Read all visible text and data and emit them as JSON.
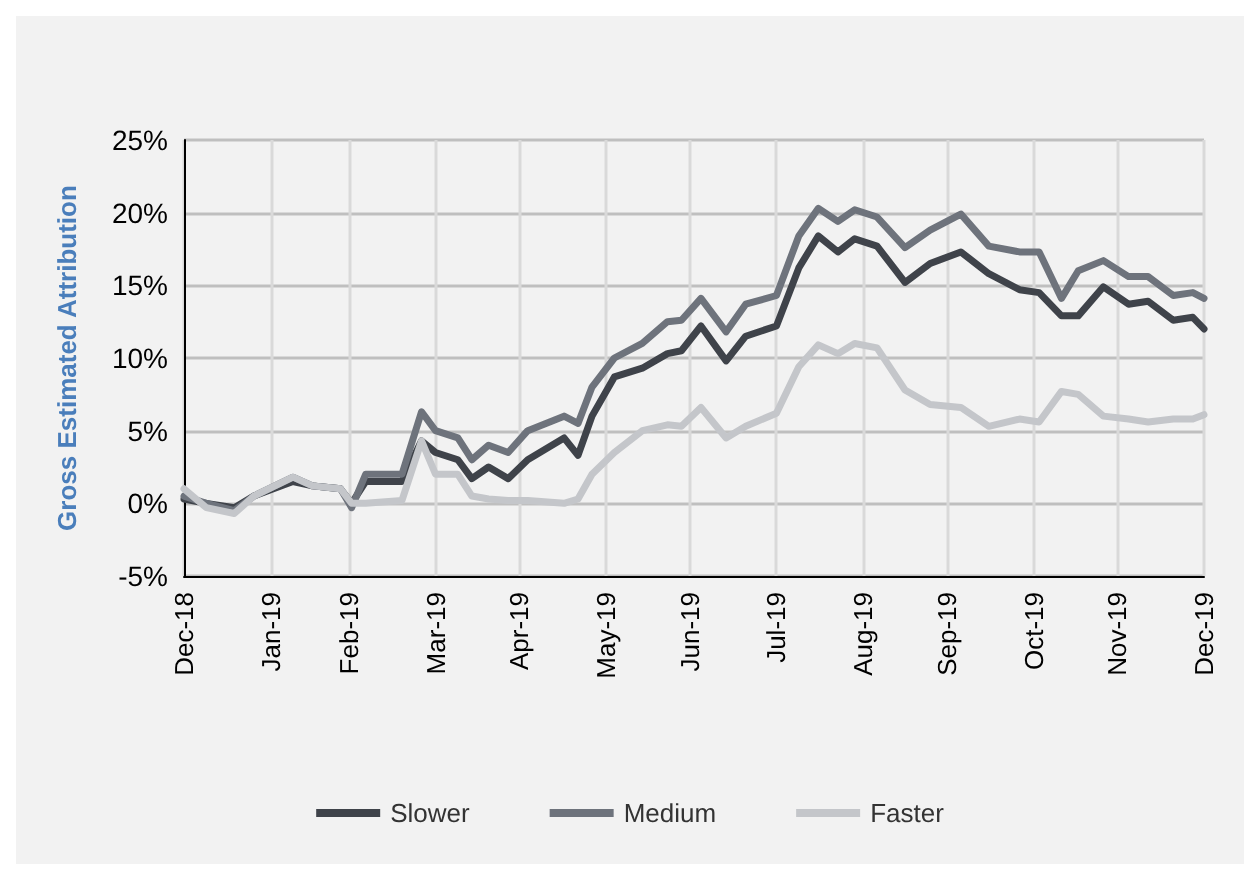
{
  "chart_data": {
    "type": "line",
    "ylabel": "Gross Estimated Attribution",
    "x": [
      "2018-12-31",
      "2019-01-08",
      "2019-01-18",
      "2019-01-25",
      "2019-02-08",
      "2019-02-15",
      "2019-02-25",
      "2019-03-01",
      "2019-03-06",
      "2019-03-19",
      "2019-03-26",
      "2019-03-31",
      "2019-04-08",
      "2019-04-13",
      "2019-04-19",
      "2019-04-26",
      "2019-05-03",
      "2019-05-16",
      "2019-05-21",
      "2019-05-26",
      "2019-06-03",
      "2019-06-13",
      "2019-06-22",
      "2019-06-27",
      "2019-07-04",
      "2019-07-13",
      "2019-07-20",
      "2019-07-31",
      "2019-08-08",
      "2019-08-15",
      "2019-08-22",
      "2019-08-28",
      "2019-09-05",
      "2019-09-15",
      "2019-09-24",
      "2019-10-05",
      "2019-10-15",
      "2019-10-26",
      "2019-11-02",
      "2019-11-10",
      "2019-11-16",
      "2019-11-25",
      "2019-12-04",
      "2019-12-11",
      "2019-12-20",
      "2019-12-27",
      "2019-12-31"
    ],
    "series": [
      {
        "name": "Slower",
        "color": "#3f434a",
        "values": [
          0.3,
          0,
          -0.3,
          0.5,
          1.5,
          1.2,
          1.0,
          0,
          1.5,
          1.5,
          4.3,
          3.5,
          3.0,
          1.7,
          2.5,
          1.7,
          3.0,
          4.5,
          3.3,
          6.0,
          8.7,
          9.3,
          10.3,
          10.5,
          12.2,
          9.8,
          11.5,
          12.2,
          16.2,
          18.4,
          17.3,
          18.2,
          17.7,
          15.2,
          16.5,
          17.3,
          15.8,
          14.7,
          14.5,
          12.9,
          12.9,
          14.9,
          13.7,
          13.9,
          12.6,
          12.8,
          12.0
        ]
      },
      {
        "name": "Medium",
        "color": "#6e737c",
        "values": [
          0.5,
          0,
          -0.5,
          0.5,
          1.8,
          1.2,
          1.0,
          -0.3,
          2.0,
          2.0,
          6.3,
          5.0,
          4.5,
          3.0,
          4.0,
          3.5,
          5.0,
          6.0,
          5.5,
          8.0,
          10.0,
          11.0,
          12.5,
          12.6,
          14.1,
          11.8,
          13.7,
          14.3,
          18.4,
          20.3,
          19.4,
          20.2,
          19.7,
          17.6,
          18.8,
          19.9,
          17.7,
          17.3,
          17.3,
          14.1,
          16.0,
          16.7,
          15.6,
          15.6,
          14.3,
          14.5,
          14.1
        ]
      },
      {
        "name": "Faster",
        "color": "#c4c6ca",
        "values": [
          1.0,
          -0.3,
          -0.7,
          0.5,
          1.8,
          1.2,
          1.0,
          0,
          0,
          0.2,
          4.3,
          2.0,
          2.0,
          0.5,
          0.3,
          0.2,
          0.2,
          0,
          0.3,
          2.0,
          3.5,
          5.0,
          5.4,
          5.3,
          6.6,
          4.5,
          5.3,
          6.2,
          9.4,
          10.9,
          10.3,
          11.0,
          10.7,
          7.8,
          6.8,
          6.6,
          5.3,
          5.8,
          5.6,
          7.7,
          7.5,
          6.0,
          5.8,
          5.6,
          5.8,
          5.8,
          6.1
        ]
      }
    ],
    "xlim": [
      "2018-12-31",
      "2019-12-31"
    ],
    "xticks": [
      {
        "value": "2018-12-31",
        "label": "Dec-18"
      },
      {
        "value": "2019-01-31",
        "label": "Jan-19"
      },
      {
        "value": "2019-02-28",
        "label": "Feb-19"
      },
      {
        "value": "2019-03-31",
        "label": "Mar-19"
      },
      {
        "value": "2019-04-30",
        "label": "Apr-19"
      },
      {
        "value": "2019-05-31",
        "label": "May-19"
      },
      {
        "value": "2019-06-30",
        "label": "Jun-19"
      },
      {
        "value": "2019-07-31",
        "label": "Jul-19"
      },
      {
        "value": "2019-08-31",
        "label": "Aug-19"
      },
      {
        "value": "2019-09-30",
        "label": "Sep-19"
      },
      {
        "value": "2019-10-31",
        "label": "Oct-19"
      },
      {
        "value": "2019-11-30",
        "label": "Nov-19"
      },
      {
        "value": "2019-12-31",
        "label": "Dec-19"
      }
    ],
    "ylim": [
      -5,
      25
    ],
    "yticks": [
      {
        "value": -5,
        "label": "-5%"
      },
      {
        "value": 0,
        "label": "0%"
      },
      {
        "value": 5,
        "label": "5%"
      },
      {
        "value": 10,
        "label": "10%"
      },
      {
        "value": 15,
        "label": "15%"
      },
      {
        "value": 20,
        "label": "20%"
      },
      {
        "value": 25,
        "label": "25%"
      }
    ],
    "grid": true,
    "legend": "bottom",
    "marker": "none",
    "line_style": "solid"
  }
}
